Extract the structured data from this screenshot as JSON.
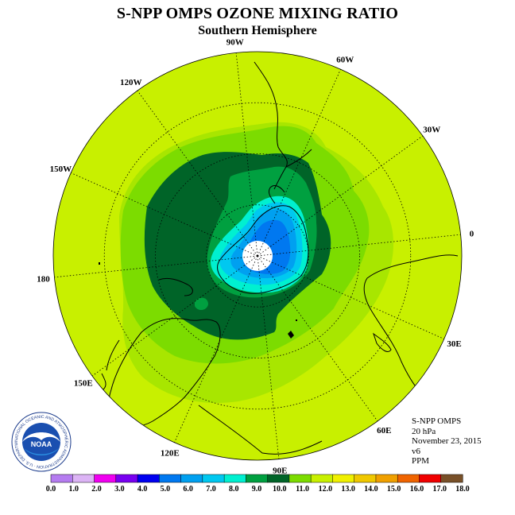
{
  "title": "S-NPP OMPS OZONE MIXING RATIO",
  "subtitle": "Southern Hemisphere",
  "longitude_labels": [
    {
      "text": "90W"
    },
    {
      "text": "60W"
    },
    {
      "text": "30W"
    },
    {
      "text": "0"
    },
    {
      "text": "30E"
    },
    {
      "text": "60E"
    },
    {
      "text": "90E"
    },
    {
      "text": "120E"
    },
    {
      "text": "150E"
    },
    {
      "text": "180"
    },
    {
      "text": "150W"
    },
    {
      "text": "120W"
    }
  ],
  "info": {
    "instrument": "S-NPP OMPS",
    "level": "20 hPa",
    "date": "November 23, 2015",
    "version": "v6",
    "units": "PPM"
  },
  "logo": {
    "text": "NOAA",
    "ring_text": "NATIONAL OCEANIC AND ATMOSPHERIC ADMINISTRATION · U.S. DEPARTMENT OF COMMERCE",
    "icon": "noaa-logo"
  },
  "colorbar": {
    "labels": [
      "0.0",
      "1.0",
      "2.0",
      "3.0",
      "4.0",
      "5.0",
      "6.0",
      "7.0",
      "8.0",
      "9.0",
      "10.0",
      "11.0",
      "12.0",
      "13.0",
      "14.0",
      "15.0",
      "16.0",
      "17.0",
      "18.0"
    ],
    "colors": [
      "#b57cf0",
      "#dcb4f5",
      "#f000f0",
      "#7800f0",
      "#0000f0",
      "#0078f0",
      "#00a0f0",
      "#00c8f0",
      "#00f0d0",
      "#00a040",
      "#006428",
      "#7cdc00",
      "#c8f000",
      "#f0f000",
      "#f0c800",
      "#f0a000",
      "#f06400",
      "#f00000",
      "#785028"
    ]
  },
  "map": {
    "background_color": "#c8f000",
    "contour_colors": {
      "c11": "#a8e600",
      "c10": "#7cdc00",
      "c9": "#006428",
      "c8": "#00a040",
      "c7": "#00f0d0",
      "c6": "#00c8f0",
      "c5": "#00a0f0",
      "c4": "#0078f0"
    },
    "pole_fill": "#ffffff"
  }
}
